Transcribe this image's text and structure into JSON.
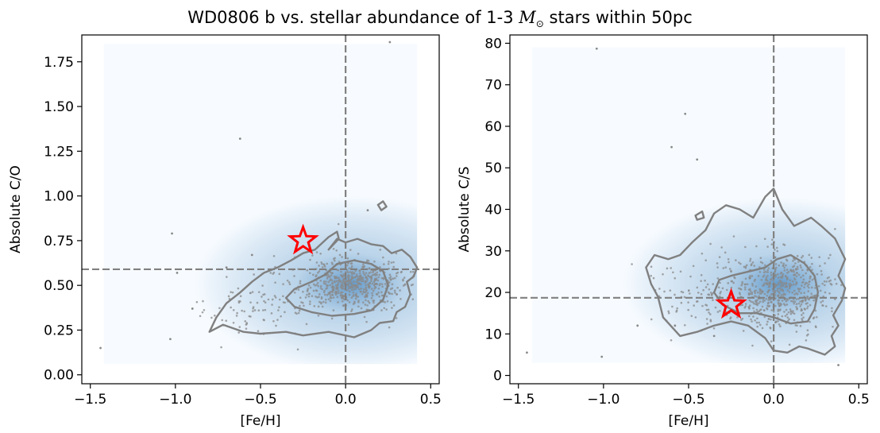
{
  "title_prefix": "WD0806 b vs. stellar abundance of 1-3 ",
  "title_symbol": "M",
  "title_subscript": "⊙",
  "title_suffix": " stars within 50pc",
  "colors": {
    "contour": "#808080",
    "scatter": "#8a8a8a",
    "ref_line": "#808080",
    "star": "#ff0000",
    "kde_dark": "#5b95c8",
    "kde_light": "#f7fbff"
  },
  "chart_data": [
    {
      "type": "scatter",
      "title": "",
      "xlabel": "[Fe/H]",
      "ylabel": "Absolute C/O",
      "xlim": [
        -1.55,
        0.55
      ],
      "ylim": [
        -0.05,
        1.9
      ],
      "xticks": [
        -1.5,
        -1.0,
        -0.5,
        0.0,
        0.5
      ],
      "xtick_labels": [
        "−1.5",
        "−1.0",
        "−0.5",
        "0.0",
        "0.5"
      ],
      "yticks": [
        0.0,
        0.25,
        0.5,
        0.75,
        1.0,
        1.25,
        1.5,
        1.75
      ],
      "ytick_labels": [
        "0.00",
        "0.25",
        "0.50",
        "0.75",
        "1.00",
        "1.25",
        "1.50",
        "1.75"
      ],
      "kde_extent": {
        "x": [
          -1.42,
          0.42
        ],
        "y": [
          0.06,
          1.85
        ]
      },
      "ref_lines": {
        "vertical_x": 0.0,
        "horizontal_y": 0.59
      },
      "planet_marker": {
        "label": "WD0806 b",
        "x": -0.25,
        "y": 0.75
      },
      "cloud": {
        "center": [
          0.05,
          0.51
        ],
        "sd": [
          0.16,
          0.07
        ],
        "tail_from": [
          -0.75,
          0.33
        ],
        "n": 700
      },
      "outliers": [
        [
          -1.44,
          0.15
        ],
        [
          -1.02,
          0.79
        ],
        [
          -1.03,
          0.2
        ],
        [
          -0.99,
          0.57
        ],
        [
          -0.62,
          1.32
        ],
        [
          0.26,
          1.86
        ],
        [
          -0.55,
          0.67
        ],
        [
          0.13,
          0.92
        ],
        [
          -0.7,
          0.6
        ],
        [
          -0.9,
          0.37
        ]
      ],
      "contours": [
        [
          [
            -0.8,
            0.24
          ],
          [
            -0.72,
            0.28
          ],
          [
            -0.6,
            0.24
          ],
          [
            -0.5,
            0.23
          ],
          [
            -0.35,
            0.24
          ],
          [
            -0.25,
            0.22
          ],
          [
            -0.1,
            0.24
          ],
          [
            0.05,
            0.21
          ],
          [
            0.15,
            0.25
          ],
          [
            0.2,
            0.29
          ],
          [
            0.28,
            0.3
          ],
          [
            0.3,
            0.35
          ],
          [
            0.35,
            0.38
          ],
          [
            0.38,
            0.45
          ],
          [
            0.36,
            0.52
          ],
          [
            0.4,
            0.55
          ],
          [
            0.42,
            0.6
          ],
          [
            0.38,
            0.66
          ],
          [
            0.33,
            0.7
          ],
          [
            0.27,
            0.68
          ],
          [
            0.22,
            0.72
          ],
          [
            0.15,
            0.73
          ],
          [
            0.07,
            0.76
          ],
          [
            0.0,
            0.74
          ],
          [
            -0.05,
            0.76
          ],
          [
            -0.1,
            0.7
          ],
          [
            -0.04,
            0.76
          ],
          [
            -0.05,
            0.8
          ],
          [
            -0.1,
            0.77
          ],
          [
            -0.18,
            0.7
          ],
          [
            -0.25,
            0.68
          ],
          [
            -0.32,
            0.64
          ],
          [
            -0.4,
            0.6
          ],
          [
            -0.48,
            0.57
          ],
          [
            -0.55,
            0.52
          ],
          [
            -0.62,
            0.46
          ],
          [
            -0.7,
            0.4
          ],
          [
            -0.76,
            0.32
          ],
          [
            -0.8,
            0.24
          ]
        ],
        [
          [
            -0.35,
            0.43
          ],
          [
            -0.3,
            0.38
          ],
          [
            -0.2,
            0.35
          ],
          [
            -0.08,
            0.33
          ],
          [
            0.05,
            0.34
          ],
          [
            0.15,
            0.36
          ],
          [
            0.22,
            0.42
          ],
          [
            0.25,
            0.5
          ],
          [
            0.22,
            0.58
          ],
          [
            0.15,
            0.62
          ],
          [
            0.05,
            0.64
          ],
          [
            -0.05,
            0.62
          ],
          [
            -0.12,
            0.56
          ],
          [
            -0.2,
            0.52
          ],
          [
            -0.3,
            0.48
          ],
          [
            -0.35,
            0.43
          ]
        ],
        [
          [
            0.19,
            0.95
          ],
          [
            0.22,
            0.97
          ],
          [
            0.24,
            0.94
          ],
          [
            0.21,
            0.92
          ],
          [
            0.19,
            0.95
          ]
        ]
      ]
    },
    {
      "type": "scatter",
      "title": "",
      "xlabel": "[Fe/H]",
      "ylabel": "Absolute C/S",
      "xlim": [
        -1.55,
        0.55
      ],
      "ylim": [
        -2,
        82
      ],
      "xticks": [
        -1.5,
        -1.0,
        -0.5,
        0.0,
        0.5
      ],
      "xtick_labels": [
        "−1.5",
        "−1.0",
        "−0.5",
        "0.0",
        "0.5"
      ],
      "yticks": [
        0,
        10,
        20,
        30,
        40,
        50,
        60,
        70,
        80
      ],
      "ytick_labels": [
        "0",
        "10",
        "20",
        "30",
        "40",
        "50",
        "60",
        "70",
        "80"
      ],
      "kde_extent": {
        "x": [
          -1.42,
          0.42
        ],
        "y": [
          3,
          79
        ]
      },
      "ref_lines": {
        "vertical_x": 0.0,
        "horizontal_y": 18.7
      },
      "planet_marker": {
        "label": "WD0806 b",
        "x": -0.25,
        "y": 17
      },
      "cloud": {
        "center": [
          0.05,
          20.5
        ],
        "sd": [
          0.16,
          4.5
        ],
        "tail_from": [
          -0.65,
          20
        ],
        "n": 700
      },
      "outliers": [
        [
          -1.45,
          5.5
        ],
        [
          -1.04,
          78.7
        ],
        [
          -1.01,
          4.5
        ],
        [
          -0.6,
          55
        ],
        [
          -0.52,
          63
        ],
        [
          -0.45,
          52
        ],
        [
          -0.58,
          12
        ],
        [
          -0.8,
          12
        ],
        [
          -0.35,
          9.5
        ],
        [
          0.38,
          2.5
        ]
      ],
      "contours": [
        [
          [
            -0.65,
            14
          ],
          [
            -0.55,
            9.5
          ],
          [
            -0.45,
            10.5
          ],
          [
            -0.35,
            12
          ],
          [
            -0.25,
            13
          ],
          [
            -0.15,
            12
          ],
          [
            -0.05,
            9
          ],
          [
            0.0,
            6
          ],
          [
            0.08,
            5.5
          ],
          [
            0.15,
            7
          ],
          [
            0.2,
            6.5
          ],
          [
            0.3,
            5
          ],
          [
            0.36,
            7
          ],
          [
            0.34,
            9.5
          ],
          [
            0.38,
            12
          ],
          [
            0.35,
            14.5
          ],
          [
            0.4,
            18
          ],
          [
            0.42,
            21
          ],
          [
            0.38,
            24
          ],
          [
            0.42,
            28
          ],
          [
            0.36,
            33
          ],
          [
            0.28,
            36
          ],
          [
            0.22,
            38
          ],
          [
            0.12,
            36
          ],
          [
            0.05,
            40
          ],
          [
            0.0,
            45
          ],
          [
            -0.05,
            43
          ],
          [
            -0.12,
            38
          ],
          [
            -0.2,
            40
          ],
          [
            -0.28,
            41
          ],
          [
            -0.35,
            39
          ],
          [
            -0.4,
            35
          ],
          [
            -0.48,
            32
          ],
          [
            -0.55,
            29
          ],
          [
            -0.62,
            28
          ],
          [
            -0.7,
            29
          ],
          [
            -0.75,
            26
          ],
          [
            -0.72,
            22
          ],
          [
            -0.68,
            19
          ],
          [
            -0.65,
            14
          ]
        ],
        [
          [
            -0.35,
            20
          ],
          [
            -0.3,
            17
          ],
          [
            -0.2,
            15
          ],
          [
            -0.1,
            15
          ],
          [
            0.0,
            14
          ],
          [
            0.1,
            12.5
          ],
          [
            0.2,
            13
          ],
          [
            0.24,
            16
          ],
          [
            0.26,
            20
          ],
          [
            0.24,
            24
          ],
          [
            0.18,
            27
          ],
          [
            0.1,
            29
          ],
          [
            0.02,
            28
          ],
          [
            -0.05,
            26
          ],
          [
            -0.15,
            25
          ],
          [
            -0.25,
            24
          ],
          [
            -0.32,
            23
          ],
          [
            -0.35,
            20
          ]
        ],
        [
          [
            -0.46,
            38.5
          ],
          [
            -0.42,
            39.5
          ],
          [
            -0.41,
            38
          ],
          [
            -0.45,
            37.5
          ],
          [
            -0.46,
            38.5
          ]
        ]
      ]
    }
  ]
}
